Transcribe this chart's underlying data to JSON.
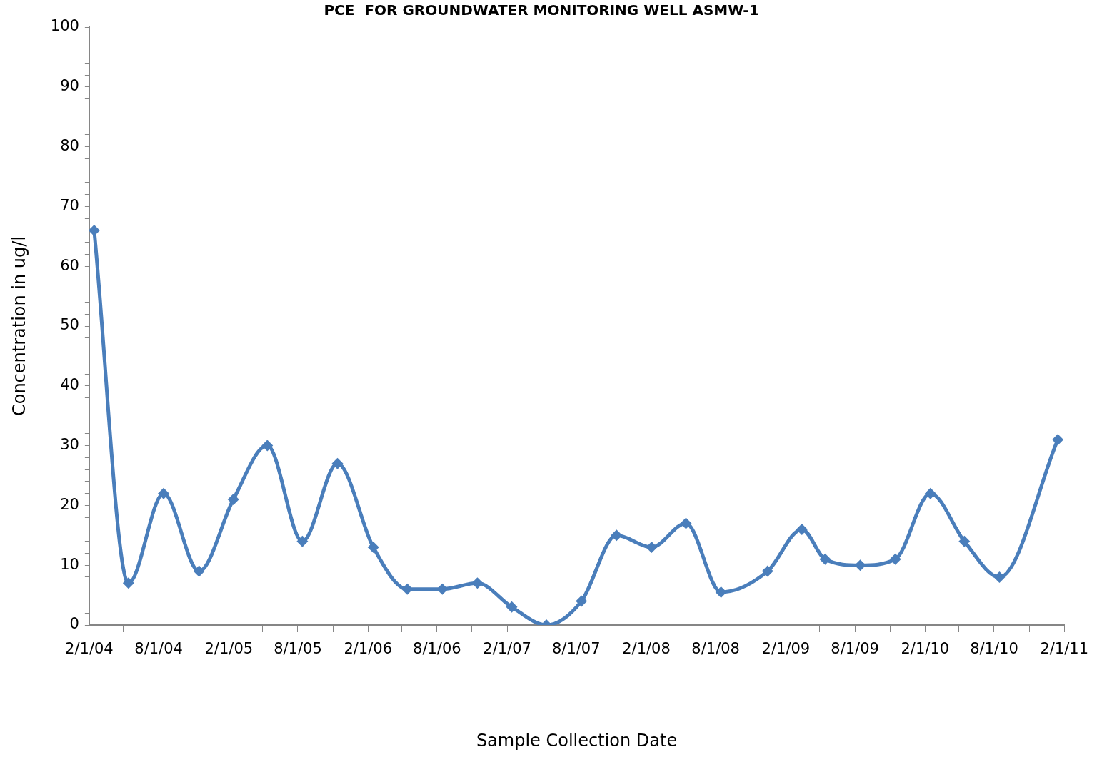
{
  "chart_data": {
    "type": "line",
    "title": "PCE  FOR GROUNDWATER MONITORING WELL ASMW-1",
    "xlabel": "Sample Collection Date",
    "ylabel": "Concentration in ug/l",
    "x": [
      "2004-02-14",
      "2004-05-14",
      "2004-08-14",
      "2004-11-15",
      "2005-02-13",
      "2005-05-13",
      "2005-08-13",
      "2005-11-13",
      "2006-02-15",
      "2006-05-15",
      "2006-08-15",
      "2006-11-15",
      "2007-02-13",
      "2007-05-15",
      "2007-08-15",
      "2007-11-15",
      "2008-02-15",
      "2008-05-15",
      "2008-08-15",
      "2008-12-15",
      "2009-03-15",
      "2009-05-15",
      "2009-08-15",
      "2009-11-15",
      "2010-02-15",
      "2010-05-15",
      "2010-08-15",
      "2011-01-15"
    ],
    "series": [
      {
        "color": "#4a7ebb",
        "values": [
          66,
          7,
          22,
          9,
          21,
          30,
          14,
          27,
          13,
          6,
          6,
          7,
          3,
          0,
          4,
          15,
          13,
          17,
          5.5,
          9,
          16,
          11,
          10,
          11,
          22,
          14,
          8,
          31
        ]
      }
    ],
    "xlim": [
      "2004-02-01",
      "2011-02-01"
    ],
    "xticks": [
      {
        "value": "2004-02-01",
        "label": "2/1/04"
      },
      {
        "value": "2004-05-01",
        "label": null
      },
      {
        "value": "2004-08-01",
        "label": "8/1/04"
      },
      {
        "value": "2004-11-01",
        "label": null
      },
      {
        "value": "2005-02-01",
        "label": "2/1/05"
      },
      {
        "value": "2005-05-01",
        "label": null
      },
      {
        "value": "2005-08-01",
        "label": "8/1/05"
      },
      {
        "value": "2005-11-01",
        "label": null
      },
      {
        "value": "2006-02-01",
        "label": "2/1/06"
      },
      {
        "value": "2006-05-01",
        "label": null
      },
      {
        "value": "2006-08-01",
        "label": "8/1/06"
      },
      {
        "value": "2006-11-01",
        "label": null
      },
      {
        "value": "2007-02-01",
        "label": "2/1/07"
      },
      {
        "value": "2007-05-01",
        "label": null
      },
      {
        "value": "2007-08-01",
        "label": "8/1/07"
      },
      {
        "value": "2007-11-01",
        "label": null
      },
      {
        "value": "2008-02-01",
        "label": "2/1/08"
      },
      {
        "value": "2008-05-01",
        "label": null
      },
      {
        "value": "2008-08-01",
        "label": "8/1/08"
      },
      {
        "value": "2008-11-01",
        "label": null
      },
      {
        "value": "2009-02-01",
        "label": "2/1/09"
      },
      {
        "value": "2009-05-01",
        "label": null
      },
      {
        "value": "2009-08-01",
        "label": "8/1/09"
      },
      {
        "value": "2009-11-01",
        "label": null
      },
      {
        "value": "2010-02-01",
        "label": "2/1/10"
      },
      {
        "value": "2010-05-01",
        "label": null
      },
      {
        "value": "2010-08-01",
        "label": "8/1/10"
      },
      {
        "value": "2010-11-01",
        "label": null
      },
      {
        "value": "2011-02-01",
        "label": "2/1/11"
      }
    ],
    "ylim": [
      0,
      100
    ],
    "yticks": [
      0,
      {
        "value": 2,
        "label": null
      },
      {
        "value": 4,
        "label": null
      },
      {
        "value": 6,
        "label": null
      },
      {
        "value": 8,
        "label": null
      },
      10,
      {
        "value": 12,
        "label": null
      },
      {
        "value": 14,
        "label": null
      },
      {
        "value": 16,
        "label": null
      },
      {
        "value": 18,
        "label": null
      },
      20,
      {
        "value": 22,
        "label": null
      },
      {
        "value": 24,
        "label": null
      },
      {
        "value": 26,
        "label": null
      },
      {
        "value": 28,
        "label": null
      },
      30,
      {
        "value": 32,
        "label": null
      },
      {
        "value": 34,
        "label": null
      },
      {
        "value": 36,
        "label": null
      },
      {
        "value": 38,
        "label": null
      },
      40,
      {
        "value": 42,
        "label": null
      },
      {
        "value": 44,
        "label": null
      },
      {
        "value": 46,
        "label": null
      },
      {
        "value": 48,
        "label": null
      },
      50,
      {
        "value": 52,
        "label": null
      },
      {
        "value": 54,
        "label": null
      },
      {
        "value": 56,
        "label": null
      },
      {
        "value": 58,
        "label": null
      },
      60,
      {
        "value": 62,
        "label": null
      },
      {
        "value": 64,
        "label": null
      },
      {
        "value": 66,
        "label": null
      },
      {
        "value": 68,
        "label": null
      },
      70,
      {
        "value": 72,
        "label": null
      },
      {
        "value": 74,
        "label": null
      },
      {
        "value": 76,
        "label": null
      },
      {
        "value": 78,
        "label": null
      },
      80,
      {
        "value": 82,
        "label": null
      },
      {
        "value": 84,
        "label": null
      },
      {
        "value": 86,
        "label": null
      },
      {
        "value": 88,
        "label": null
      },
      90,
      {
        "value": 92,
        "label": null
      },
      {
        "value": 94,
        "label": null
      },
      {
        "value": 96,
        "label": null
      },
      {
        "value": 98,
        "label": null
      },
      100
    ],
    "grid": false,
    "legend": false,
    "marker": "diamond",
    "line_style": "solid"
  }
}
